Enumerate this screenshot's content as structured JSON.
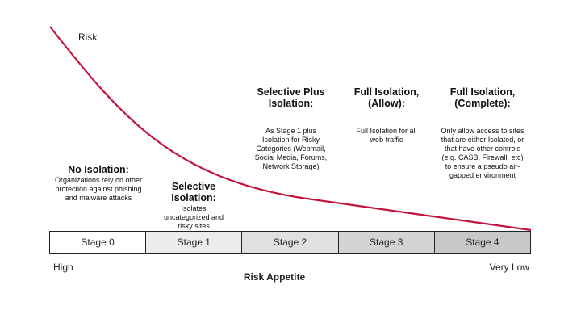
{
  "curve": {
    "label": "Risk",
    "color": "#c0143c"
  },
  "columns": [
    {
      "title": "No Isolation:",
      "description": "Organizations rely on other protection against phishing and malware attacks"
    },
    {
      "title": "Selective Isolation:",
      "description": "Isolates uncategorized and risky sites"
    },
    {
      "title": "Selective Plus Isolation:",
      "description": "As Stage 1 plus Isolation for Risky Categories (Webmail, Social Media, Forums, Network Storage)"
    },
    {
      "title": "Full Isolation, (Allow):",
      "description": "Full Isolation for all web traffic"
    },
    {
      "title": "Full Isolation, (Complete):",
      "description": "Only allow access to sites that are either Isolated, or that have other controls (e.g. CASB, Firewall, etc) to ensure a pseudo air-gapped environment"
    }
  ],
  "stages": [
    {
      "label": "Stage 0",
      "fill": "#ffffff"
    },
    {
      "label": "Stage 1",
      "fill": "#ececec"
    },
    {
      "label": "Stage 2",
      "fill": "#e0e0e0"
    },
    {
      "label": "Stage 3",
      "fill": "#d4d4d4"
    },
    {
      "label": "Stage 4",
      "fill": "#c8c8c8"
    }
  ],
  "axis": {
    "left": "High",
    "right": "Very Low",
    "title": "Risk Appetite"
  }
}
